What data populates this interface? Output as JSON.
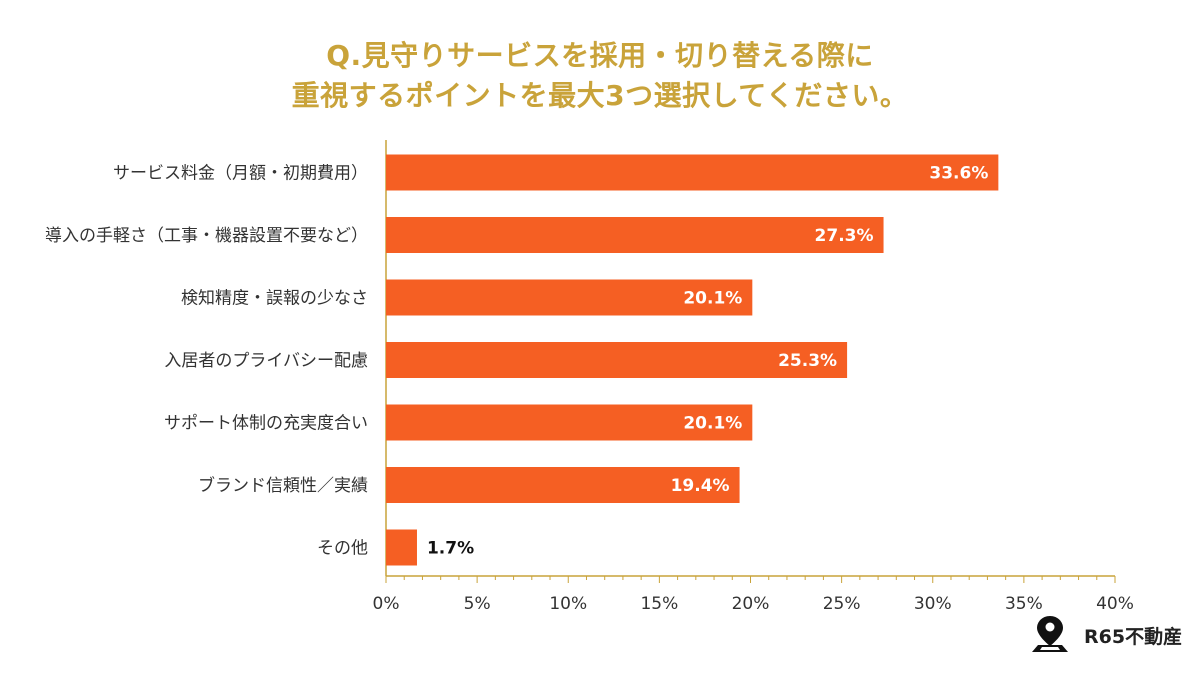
{
  "title_line1": "Q.見守りサービスを採用・切り替える際に",
  "title_line2": "重視するポイントを最大3つ選択してください。",
  "chart_data": {
    "type": "bar",
    "orientation": "horizontal",
    "categories": [
      "サービス料金（月額・初期費用）",
      "導入の手軽さ（工事・機器設置不要など）",
      "検知精度・誤報の少なさ",
      "入居者のプライバシー配慮",
      "サポート体制の充実度合い",
      "ブランド信頼性／実績",
      "その他"
    ],
    "values": [
      33.6,
      27.3,
      20.1,
      25.3,
      20.1,
      19.4,
      1.7
    ],
    "value_labels": [
      "33.6%",
      "27.3%",
      "20.1%",
      "25.3%",
      "20.1%",
      "19.4%",
      "1.7%"
    ],
    "xlim": [
      0,
      40
    ],
    "x_ticks": [
      0,
      5,
      10,
      15,
      20,
      25,
      30,
      35,
      40
    ],
    "x_tick_labels": [
      "0%",
      "5%",
      "10%",
      "15%",
      "20%",
      "25%",
      "30%",
      "35%",
      "40%"
    ],
    "grid": false,
    "bar_color": "#f55f23",
    "axis_color": "#c9a33a"
  },
  "brand": {
    "name": "R65不動産",
    "icon": "map-pin-icon"
  }
}
